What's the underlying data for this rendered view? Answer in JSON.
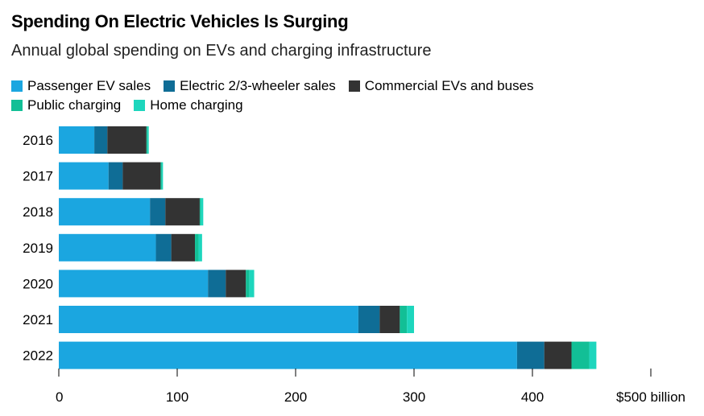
{
  "header": {
    "title": "Spending On Electric Vehicles Is Surging",
    "subtitle": "Annual global spending on EVs and charging infrastructure"
  },
  "colors": {
    "passenger": "#1ba6e0",
    "two_three_wheeler": "#0f6d96",
    "commercial": "#333333",
    "public_charging": "#12bf96",
    "home_charging": "#1dd6bd"
  },
  "legend": [
    {
      "label": "Passenger EV sales",
      "color": "#1ba6e0"
    },
    {
      "label": "Electric 2/3-wheeler sales",
      "color": "#0f6d96"
    },
    {
      "label": "Commercial EVs and buses",
      "color": "#333333"
    },
    {
      "label": "Public charging",
      "color": "#12bf96"
    },
    {
      "label": "Home charging",
      "color": "#1dd6bd"
    }
  ],
  "chart_data": {
    "type": "bar",
    "orientation": "horizontal",
    "stacked": true,
    "title": "Spending On Electric Vehicles Is Surging",
    "subtitle": "Annual global spending on EVs and charging infrastructure",
    "categories": [
      "2016",
      "2017",
      "2018",
      "2019",
      "2020",
      "2021",
      "2022"
    ],
    "series": [
      {
        "name": "Passenger EV sales",
        "color": "#1ba6e0",
        "values": [
          30,
          42,
          77,
          82,
          126,
          253,
          387
        ]
      },
      {
        "name": "Electric 2/3-wheeler sales",
        "color": "#0f6d96",
        "values": [
          11,
          12,
          13,
          13,
          15,
          18,
          23
        ]
      },
      {
        "name": "Commercial EVs and buses",
        "color": "#333333",
        "values": [
          33,
          32,
          29,
          20,
          17,
          17,
          23
        ]
      },
      {
        "name": "Public charging",
        "color": "#12bf96",
        "values": [
          1,
          1,
          1,
          3,
          3,
          6,
          15
        ]
      },
      {
        "name": "Home charging",
        "color": "#1dd6bd",
        "values": [
          1,
          1,
          2,
          3,
          4,
          6,
          6
        ]
      }
    ],
    "x_ticks": [
      {
        "value": 0,
        "label": "0"
      },
      {
        "value": 100,
        "label": "100"
      },
      {
        "value": 200,
        "label": "200"
      },
      {
        "value": 300,
        "label": "300"
      },
      {
        "value": 400,
        "label": "400"
      },
      {
        "value": 500,
        "label": "$500 billion"
      }
    ],
    "xlim": [
      0,
      500
    ],
    "grid": false,
    "legend_position": "top"
  }
}
